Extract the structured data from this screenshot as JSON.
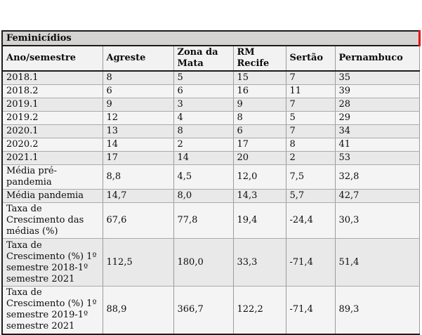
{
  "table": {
    "title": "Feminicídios",
    "columns": [
      "Ano/semestre",
      "Agreste",
      "Zona da Mata",
      "RM Recife",
      "Sertão",
      "Pernambuco"
    ],
    "rows": [
      {
        "label": "2018.1",
        "values": [
          "8",
          "5",
          "15",
          "7",
          "35"
        ]
      },
      {
        "label": "2018.2",
        "values": [
          "6",
          "6",
          "16",
          "11",
          "39"
        ]
      },
      {
        "label": "2019.1",
        "values": [
          "9",
          "3",
          "9",
          "7",
          "28"
        ]
      },
      {
        "label": "2019.2",
        "values": [
          "12",
          "4",
          "8",
          "5",
          "29"
        ]
      },
      {
        "label": "2020.1",
        "values": [
          "13",
          "8",
          "6",
          "7",
          "34"
        ]
      },
      {
        "label": "2020.2",
        "values": [
          "14",
          "2",
          "17",
          "8",
          "41"
        ]
      },
      {
        "label": "2021.1",
        "values": [
          "17",
          "14",
          "20",
          "2",
          "53"
        ]
      },
      {
        "label": "Média pré-pandemia",
        "values": [
          "8,8",
          "4,5",
          "12,0",
          "7,5",
          "32,8"
        ]
      },
      {
        "label": "Média pandemia",
        "values": [
          "14,7",
          "8,0",
          "14,3",
          "5,7",
          "42,7"
        ]
      },
      {
        "label": "Taxa de Crescimento das médias (%)",
        "values": [
          "67,6",
          "77,8",
          "19,4",
          "-24,4",
          "30,3"
        ]
      },
      {
        "label": "Taxa de Crescimento (%) 1º semestre 2018-1º semestre 2021",
        "values": [
          "112,5",
          "180,0",
          "33,3",
          "-71,4",
          "51,4"
        ]
      },
      {
        "label": "Taxa de Crescimento (%) 1º semestre 2019-1º semestre 2021",
        "values": [
          "88,9",
          "366,7",
          "122,2",
          "-71,4",
          "89,3"
        ]
      }
    ]
  },
  "colors": {
    "title_row_bg": "#d4d3d1",
    "header_row_bg": "#f2f2f2",
    "row_shade_a": "#e9e9e9",
    "row_shade_b": "#f4f4f4",
    "grid_line_horizontal": "#ababab",
    "grid_line_vertical": "#9b9b9b",
    "outer_border": "#1c1c1c",
    "title_right_marker": "#ee0000"
  }
}
